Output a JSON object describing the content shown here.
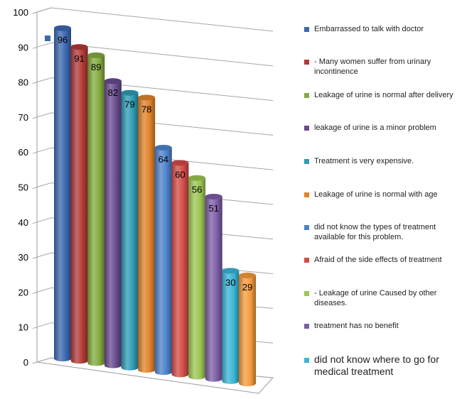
{
  "chart_data": {
    "type": "bar",
    "title": "",
    "xlabel": "",
    "ylabel": "",
    "ylim": [
      0,
      100
    ],
    "yticks": [
      0,
      10,
      20,
      30,
      40,
      50,
      60,
      70,
      80,
      90,
      100
    ],
    "grid": true,
    "legend_position": "right",
    "series": [
      {
        "name": "Embarrassed to talk with doctor",
        "value": 96,
        "color": "#3C68B0"
      },
      {
        "name": " - Many women suffer from urinary incontinence",
        "value": 91,
        "color": "#B23A36"
      },
      {
        "name": "Leakage of urine is normal after delivery",
        "value": 89,
        "color": "#84AB3F"
      },
      {
        "name": "leakage of urine is a minor problem",
        "value": 82,
        "color": "#684A8E"
      },
      {
        "name": "Treatment is very expensive.",
        "value": 79,
        "color": "#2E9BB4"
      },
      {
        "name": "Leakage of urine is normal with age",
        "value": 78,
        "color": "#E2822A"
      },
      {
        "name": "did not  know the types of treatment available for this problem.",
        "value": 64,
        "color": "#4D82CE"
      },
      {
        "name": "Afraid of the side effects of treatment",
        "value": 60,
        "color": "#D24B46"
      },
      {
        "name": " - Leakage of urine Caused by other diseases.",
        "value": 56,
        "color": "#9CC652"
      },
      {
        "name": "treatment has no benefit",
        "value": 51,
        "color": "#7D5DA8"
      },
      {
        "name": "did not know where to go for medical treatment",
        "value": 30,
        "color": "#3AB5D6"
      },
      {
        "name": "",
        "value": 29,
        "color": "#F59B3C"
      }
    ]
  }
}
